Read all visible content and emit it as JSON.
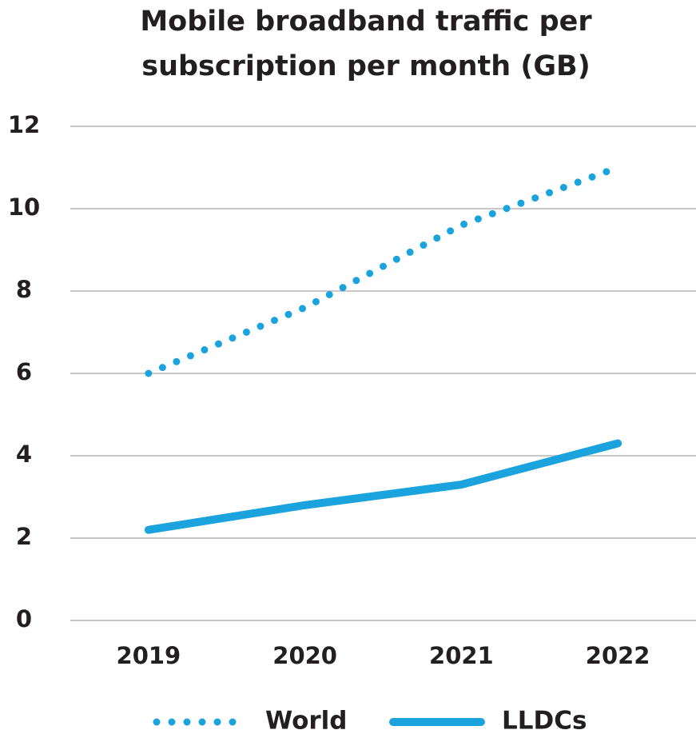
{
  "chart_data": {
    "type": "line",
    "title": [
      "Mobile broadband traffic per",
      "subscription per month (GB)"
    ],
    "categories": [
      "2019",
      "2020",
      "2021",
      "2022"
    ],
    "series": [
      {
        "name": "World",
        "color": "#1ba3dd",
        "style": "dotted",
        "values": [
          6.0,
          7.6,
          9.6,
          11.0
        ]
      },
      {
        "name": "LLDCs",
        "color": "#1ba3dd",
        "style": "solid",
        "values": [
          2.2,
          2.8,
          3.3,
          4.3
        ]
      }
    ],
    "ylim": [
      0,
      12
    ],
    "yticks": [
      0,
      2,
      4,
      6,
      8,
      10,
      12
    ],
    "grid": true,
    "legend": "bottom"
  }
}
